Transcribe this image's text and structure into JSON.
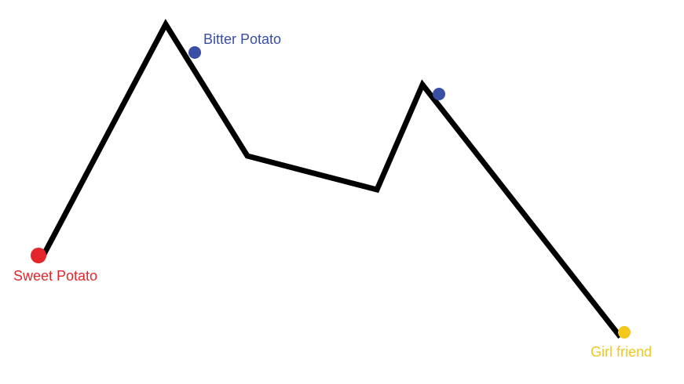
{
  "diagram": {
    "path_color": "#000000",
    "markers": [
      {
        "key": "sweet",
        "label": "Sweet Potato",
        "color": "#e2262b",
        "icon": "red-dot"
      },
      {
        "key": "bitter",
        "label": "Bitter Potato",
        "color": "#3a4ea3",
        "icon": "blue-dot"
      },
      {
        "key": "unlabeled",
        "label": "",
        "color": "#3a4ea3",
        "icon": "blue-dot"
      },
      {
        "key": "girl",
        "label": "Girl friend",
        "color": "#f2c81e",
        "icon": "yellow-dot"
      }
    ]
  }
}
